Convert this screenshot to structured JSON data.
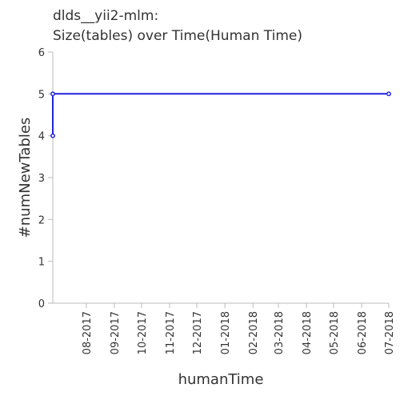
{
  "chart_data": {
    "type": "line",
    "title_lines": [
      "dlds__yii2-mlm:",
      "Size(tables) over Time(Human Time)"
    ],
    "xlabel": "humanTime",
    "ylabel": "#numNewTables",
    "x_tick_labels": [
      "08-2017",
      "09-2017",
      "10-2017",
      "11-2017",
      "12-2017",
      "01-2018",
      "02-2018",
      "03-2018",
      "04-2018",
      "05-2018",
      "06-2018",
      "07-2018"
    ],
    "x_tick_dates": [
      "2017-08-01",
      "2017-09-01",
      "2017-10-01",
      "2017-11-01",
      "2017-12-01",
      "2018-01-01",
      "2018-02-01",
      "2018-03-01",
      "2018-04-01",
      "2018-05-01",
      "2018-06-01",
      "2018-07-01"
    ],
    "y_ticks": [
      0,
      1,
      2,
      3,
      4,
      5,
      6
    ],
    "ylim": [
      0,
      6
    ],
    "grid": false,
    "series": [
      {
        "color": "#2222dd",
        "x": [
          "2017-06-25",
          "2017-06-25",
          "2018-07-01"
        ],
        "values": [
          4,
          5,
          5
        ]
      }
    ]
  }
}
